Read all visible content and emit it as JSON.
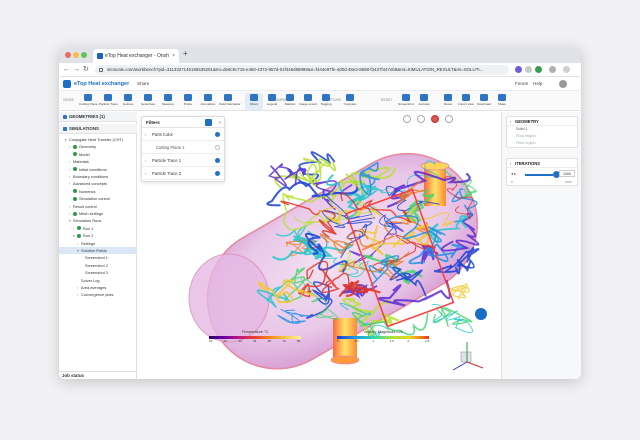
{
  "browser": {
    "tab_title": "eTop Heat exchanger - Onsh",
    "close": "×",
    "new_tab": "+",
    "back": "←",
    "forward": "→",
    "reload": "↻",
    "url": "simscale.com/workbench?pid=3113327145165535261&mi=de8c9c719-e460-4372-957d-01f446d68998&ri=f444e97fe-4d0d-48e3-8568-f3437f447eb8&mt=SIMULATION_RESULT&mi=SOLUTI..."
  },
  "app": {
    "title": "eTop Heat exchanger",
    "share": "Share",
    "forum": "Forum",
    "help": "Help",
    "accent": "#1d6fc6"
  },
  "toolbar": {
    "sections": [
      "VIEWS",
      "COMPARE",
      "CAPTURE",
      "RESET"
    ],
    "buttons": [
      "Cutting Plane",
      "Particle Trace",
      "Isolines",
      "Isosurface",
      "Measure",
      "Probe",
      "Annotation",
      "Field Calculator",
      "Filters",
      "Legend",
      "Statistic",
      "Image export",
      "Tagging",
      "Compare",
      "Screenshot",
      "Animate",
      "Reset",
      "Import view",
      "Download",
      "Share"
    ]
  },
  "tree": {
    "geometries": "GEOMETRIES (1)",
    "simulations": "SIMULATIONS",
    "items": [
      {
        "label": "Conjugate Heat Transfer (CHT)",
        "indent": 1,
        "check": false,
        "arrow": "▾"
      },
      {
        "label": "Geometry",
        "indent": 2,
        "check": true,
        "arrow": "›"
      },
      {
        "label": "Model",
        "indent": 2,
        "check": true,
        "arrow": ""
      },
      {
        "label": "Materials",
        "indent": 2,
        "check": false,
        "arrow": "›"
      },
      {
        "label": "Initial conditions",
        "indent": 2,
        "check": true,
        "arrow": "›"
      },
      {
        "label": "Boundary conditions",
        "indent": 2,
        "check": false,
        "arrow": "›"
      },
      {
        "label": "Advanced concepts",
        "indent": 2,
        "check": false,
        "arrow": "›"
      },
      {
        "label": "Numerics",
        "indent": 2,
        "check": true,
        "arrow": ""
      },
      {
        "label": "Simulation control",
        "indent": 2,
        "check": true,
        "arrow": ""
      },
      {
        "label": "Result control",
        "indent": 2,
        "check": false,
        "arrow": "›"
      },
      {
        "label": "Mesh settings",
        "indent": 2,
        "check": true,
        "arrow": "›"
      },
      {
        "label": "Simulation Runs",
        "indent": 2,
        "check": false,
        "arrow": "▾"
      },
      {
        "label": "Run 1",
        "indent": 3,
        "check": true,
        "arrow": "›"
      },
      {
        "label": "Run 2",
        "indent": 3,
        "check": true,
        "arrow": "▾"
      },
      {
        "label": "Settings",
        "indent": 4,
        "check": false,
        "arrow": "›"
      },
      {
        "label": "Solution Fields",
        "indent": 4,
        "check": false,
        "arrow": "▾",
        "selected": true
      },
      {
        "label": "Screenshot 1",
        "indent": 5,
        "check": false,
        "arrow": ""
      },
      {
        "label": "Screenshot 2",
        "indent": 5,
        "check": false,
        "arrow": ""
      },
      {
        "label": "Screenshot 3",
        "indent": 5,
        "check": false,
        "arrow": ""
      },
      {
        "label": "Solver Log",
        "indent": 4,
        "check": false,
        "arrow": ""
      },
      {
        "label": "Area averages",
        "indent": 4,
        "check": false,
        "arrow": "›"
      },
      {
        "label": "Convergence plots",
        "indent": 4,
        "check": false,
        "arrow": "›"
      }
    ],
    "job_status": "Job status"
  },
  "filters": {
    "title": "Filters",
    "rows": [
      {
        "label": "Parts Color",
        "sub": false
      },
      {
        "label": "Cutting Plane 1",
        "sub": true
      },
      {
        "label": "Particle Trace 1",
        "sub": false
      },
      {
        "label": "Particle Trace 2",
        "sub": false
      }
    ]
  },
  "legends": [
    {
      "title": "Temperature",
      "unit": "°C",
      "ticks": [
        "10",
        "22",
        "34",
        "46",
        "58",
        "70",
        "80"
      ],
      "colors": [
        "#2a006a",
        "#6b00a8",
        "#c2187a",
        "#e8412f",
        "#f58b1a",
        "#f7c846",
        "#f9f3a0"
      ]
    },
    {
      "title": "Velocity Magnitude",
      "unit": "m/s",
      "ticks": [
        "0",
        "0.5",
        "1",
        "1.5",
        "2",
        "2.5"
      ],
      "colors": [
        "#2838d0",
        "#1f9be8",
        "#2fd6a8",
        "#a6e33b",
        "#f2d21b",
        "#e83a1f"
      ]
    }
  ],
  "right": {
    "geometry": "GEOMETRY",
    "geometry_items": [
      "Solid 1",
      "Flow region",
      "Flow region"
    ],
    "iterations": "ITERATIONS",
    "iter_value": "1000",
    "iter_min": "0",
    "iter_max": "1000"
  }
}
